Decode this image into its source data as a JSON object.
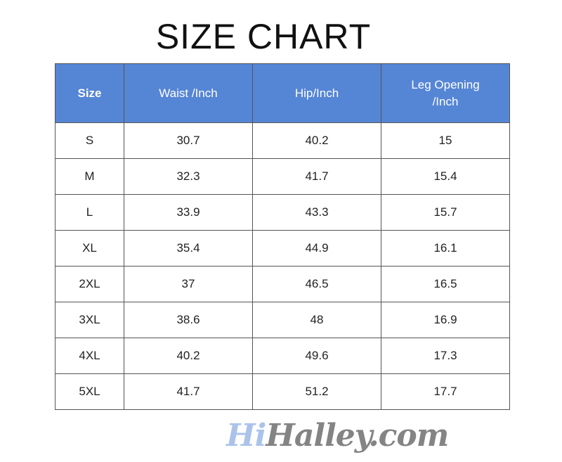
{
  "title": "SIZE CHART",
  "header_color": "#5585d5",
  "columns": [
    "Size",
    "Waist /Inch",
    "Hip/Inch",
    "Leg Opening /Inch"
  ],
  "rows": [
    [
      "S",
      "30.7",
      "40.2",
      "15"
    ],
    [
      "M",
      "32.3",
      "41.7",
      "15.4"
    ],
    [
      "L",
      "33.9",
      "43.3",
      "15.7"
    ],
    [
      "XL",
      "35.4",
      "44.9",
      "16.1"
    ],
    [
      "2XL",
      "37",
      "46.5",
      "16.5"
    ],
    [
      "3XL",
      "38.6",
      "48",
      "16.9"
    ],
    [
      "4XL",
      "40.2",
      "49.6",
      "17.3"
    ],
    [
      "5XL",
      "41.7",
      "51.2",
      "17.7"
    ]
  ],
  "watermark": {
    "part1": "Hi",
    "part2": "Halley.com"
  }
}
